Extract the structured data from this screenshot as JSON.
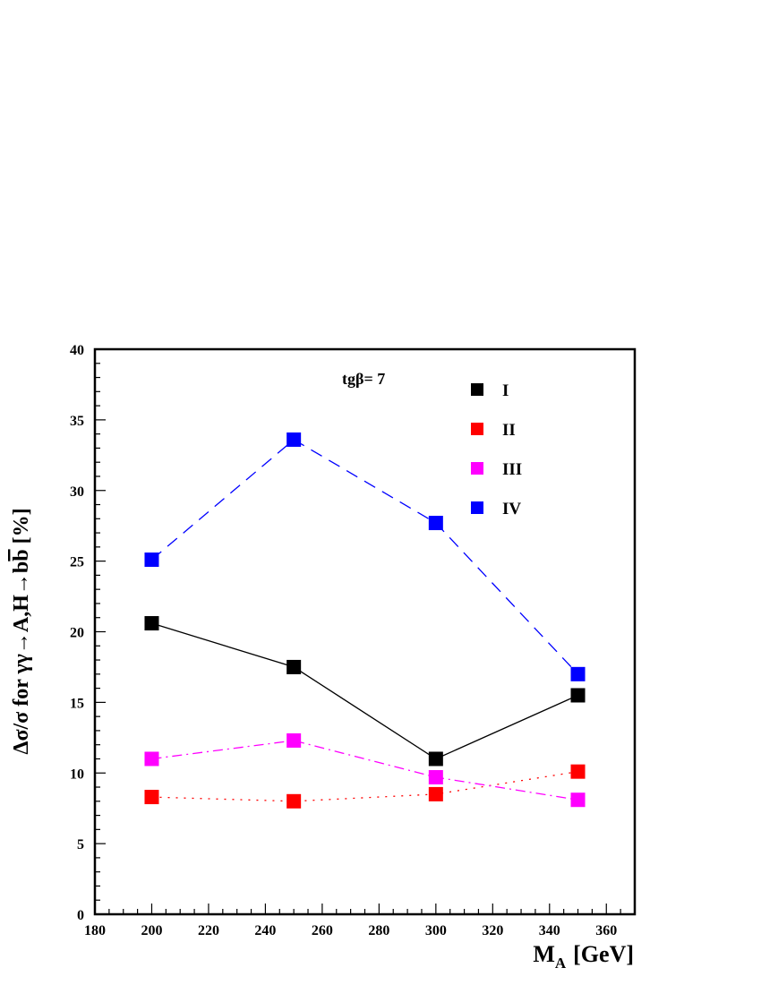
{
  "chart_data": {
    "type": "line",
    "annotation": "tgβ= 7",
    "xlabel": {
      "main": "M",
      "sub": "A",
      "unit": "[GeV]"
    },
    "ylabel": {
      "pre": "Δσ/σ   for   γγ→A,H→b",
      "bbar": "b",
      "post": "  [%]"
    },
    "xlim": [
      180,
      370
    ],
    "ylim": [
      0,
      40
    ],
    "x_ticks": [
      180,
      200,
      220,
      240,
      260,
      280,
      300,
      320,
      340,
      360
    ],
    "y_ticks": [
      0,
      5,
      10,
      15,
      20,
      25,
      30,
      35,
      40
    ],
    "x_tick_labels": [
      "180",
      "200",
      "220",
      "240",
      "260",
      "280",
      "300",
      "320",
      "340",
      "360"
    ],
    "y_tick_labels": [
      "0",
      "5",
      "10",
      "15",
      "20",
      "25",
      "30",
      "35",
      "40"
    ],
    "grid": false,
    "legend_position": "top-right",
    "x": [
      200,
      250,
      300,
      350
    ],
    "series": [
      {
        "name": "I",
        "color": "#000000",
        "line_style": "solid",
        "values": [
          20.6,
          17.5,
          11.0,
          15.5
        ]
      },
      {
        "name": "II",
        "color": "#ff0000",
        "line_style": "dotted",
        "values": [
          8.3,
          8.0,
          8.5,
          10.1
        ]
      },
      {
        "name": "III",
        "color": "#ff00ff",
        "line_style": "dash-dot",
        "values": [
          11.0,
          12.3,
          9.7,
          8.1
        ]
      },
      {
        "name": "IV",
        "color": "#0000ff",
        "line_style": "dashed",
        "values": [
          25.1,
          33.6,
          27.7,
          17.0
        ]
      }
    ]
  }
}
